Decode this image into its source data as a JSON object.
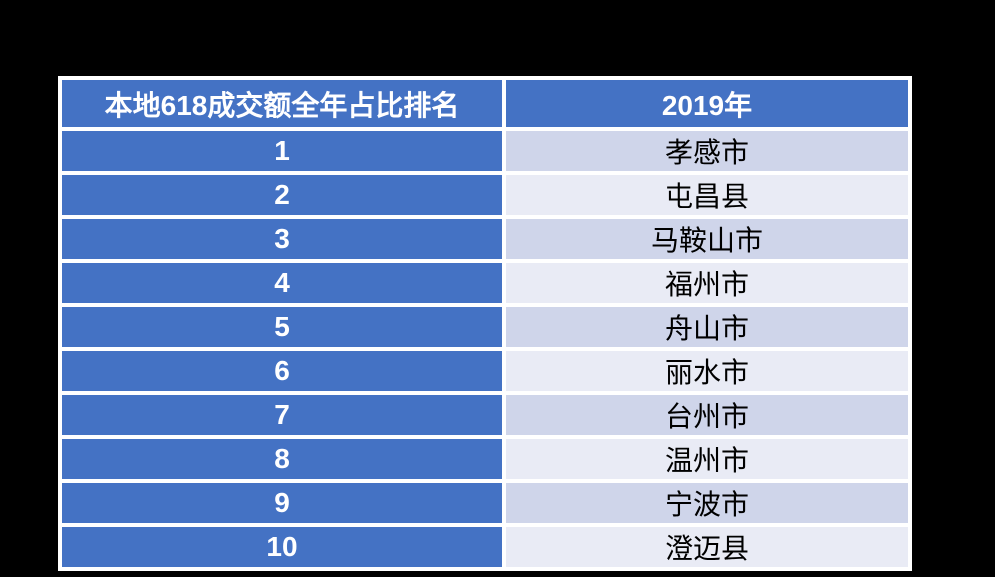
{
  "table": {
    "header": {
      "rank_label": "本地618成交额全年占比排名",
      "year_label": "2019年"
    },
    "rows": [
      {
        "rank": "1",
        "city": "孝感市"
      },
      {
        "rank": "2",
        "city": "屯昌县"
      },
      {
        "rank": "3",
        "city": "马鞍山市"
      },
      {
        "rank": "4",
        "city": "福州市"
      },
      {
        "rank": "5",
        "city": "舟山市"
      },
      {
        "rank": "6",
        "city": "丽水市"
      },
      {
        "rank": "7",
        "city": "台州市"
      },
      {
        "rank": "8",
        "city": "温州市"
      },
      {
        "rank": "9",
        "city": "宁波市"
      },
      {
        "rank": "10",
        "city": "澄迈县"
      }
    ],
    "colors": {
      "canvas_bg": "#000000",
      "border": "#FFFFFF",
      "header_bg": "#4472C4",
      "rank_col_bg": "#4472C4",
      "row_odd_bg": "#CFD5EA",
      "row_even_bg": "#E9EBF5",
      "header_text": "#FFFFFF",
      "rank_text": "#FFFFFF",
      "city_text": "#000000"
    }
  },
  "chart_data": {
    "type": "table",
    "title": "本地618成交额全年占比排名",
    "columns": [
      "本地618成交额全年占比排名",
      "2019年"
    ],
    "rows": [
      [
        "1",
        "孝感市"
      ],
      [
        "2",
        "屯昌县"
      ],
      [
        "3",
        "马鞍山市"
      ],
      [
        "4",
        "福州市"
      ],
      [
        "5",
        "舟山市"
      ],
      [
        "6",
        "丽水市"
      ],
      [
        "7",
        "台州市"
      ],
      [
        "8",
        "温州市"
      ],
      [
        "9",
        "宁波市"
      ],
      [
        "10",
        "澄迈县"
      ]
    ]
  }
}
